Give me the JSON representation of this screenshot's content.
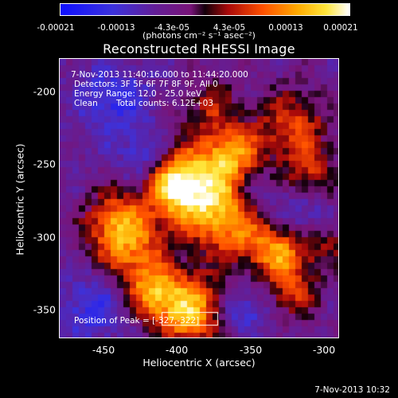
{
  "colorbar": {
    "ticks": [
      "-0.00021",
      "-0.00013",
      "-4.3e-05",
      "4.3e-05",
      "0.00013",
      "0.00021"
    ],
    "units": "(photons cm⁻² s⁻¹ asec⁻²)"
  },
  "title": "Reconstructed RHESSI Image",
  "info": {
    "time_range": "7-Nov-2013 11:40:16.000 to 11:44:20.000",
    "detectors": "Detectors: 3F 5F 6F 7F 8F 9F, All 0",
    "energy": "Energy Range: 12.0 - 25.0 keV",
    "clean": "Clean",
    "counts": "Total counts: 6.12E+03",
    "peak": "Position of Peak = [-327,-322]"
  },
  "axes": {
    "xlabel": "Heliocentric X (arcsec)",
    "ylabel": "Heliocentric Y (arcsec)",
    "xticks": [
      "-450",
      "-400",
      "-350",
      "-300"
    ],
    "yticks": [
      "-200",
      "-250",
      "-300",
      "-350"
    ],
    "xrange": [
      -480,
      -292
    ],
    "yrange": [
      -178,
      -371
    ]
  },
  "timestamp": "7-Nov-2013 10:32",
  "colors": {
    "low": "#1010ff",
    "mid": "#6c1a8c",
    "high": "#ffffff"
  }
}
